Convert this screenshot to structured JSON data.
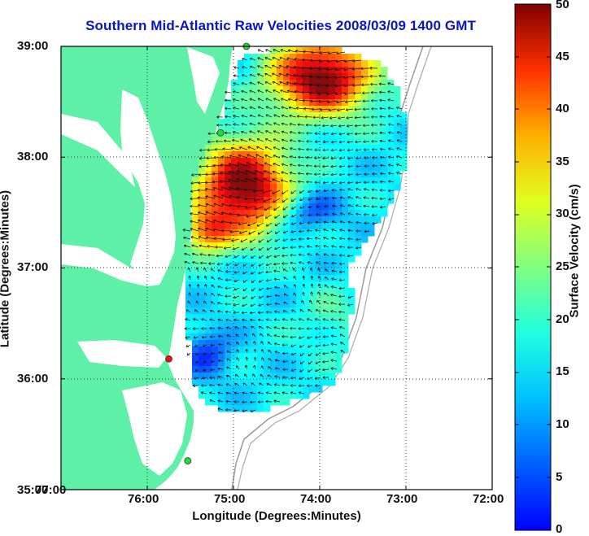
{
  "title": "Southern Mid-Atlantic Raw Velocities 2008/03/09 1400 GMT",
  "axes": {
    "xlabel": "Longitude (Degrees:Minutes)",
    "ylabel": "Latitude (Degrees:Minutes)",
    "x_ticks": [
      {
        "value": -77,
        "label": "77:00"
      },
      {
        "value": -76,
        "label": "76:00"
      },
      {
        "value": -75,
        "label": "75:00"
      },
      {
        "value": -74,
        "label": "74:00"
      },
      {
        "value": -73,
        "label": "73:00"
      },
      {
        "value": -72,
        "label": "72:00"
      }
    ],
    "y_ticks": [
      {
        "value": 39,
        "label": "39:00"
      },
      {
        "value": 38,
        "label": "38:00"
      },
      {
        "value": 37,
        "label": "37:00"
      },
      {
        "value": 36,
        "label": "36:00"
      },
      {
        "value": 35,
        "label": "35:00"
      }
    ],
    "xlim": [
      -77,
      -72
    ],
    "ylim": [
      35,
      39
    ],
    "grid": "dotted"
  },
  "colorbar": {
    "label": "Surface Velocity (cm/s)",
    "range": [
      0,
      50
    ],
    "ticks": [
      "0",
      "5",
      "10",
      "15",
      "20",
      "25",
      "30",
      "35",
      "40",
      "45",
      "50"
    ],
    "colormap": "jet"
  },
  "colors": {
    "land": "#5ef0a6",
    "title": "#0a14c8",
    "station_green": "#22dd33",
    "station_red": "#ee1111"
  },
  "stations": [
    {
      "lon": -74.85,
      "lat": 39.0,
      "color": "green"
    },
    {
      "lon": -75.15,
      "lat": 38.22,
      "color": "green"
    },
    {
      "lon": -75.75,
      "lat": 36.18,
      "color": "red"
    },
    {
      "lon": -75.53,
      "lat": 35.26,
      "color": "green"
    }
  ]
}
